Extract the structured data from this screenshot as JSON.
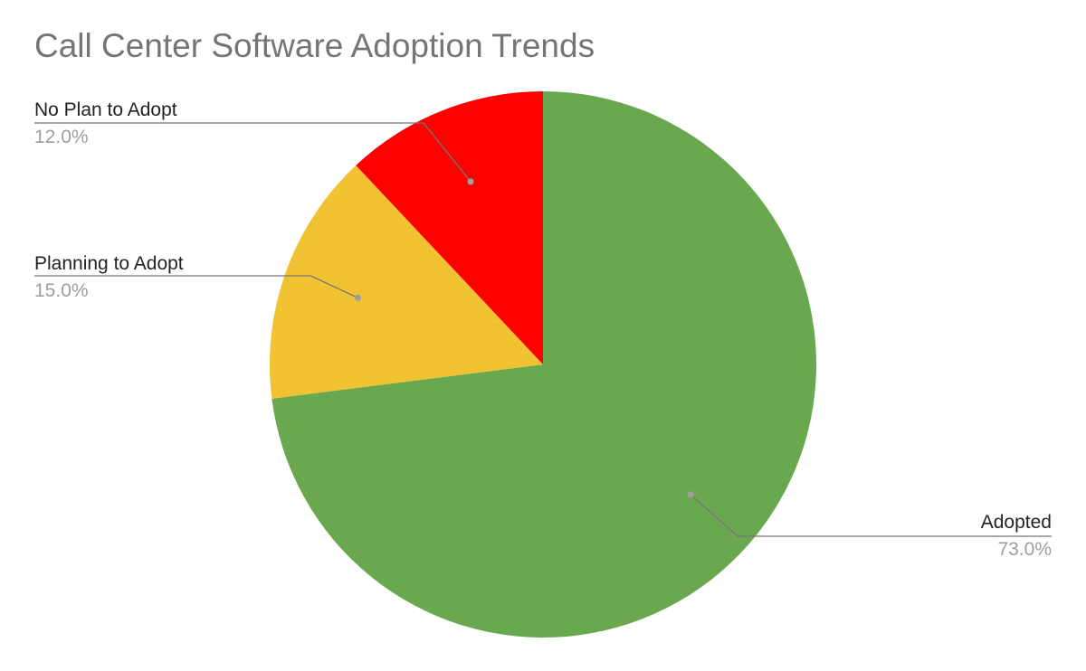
{
  "chart_data": {
    "type": "pie",
    "title": "Call Center Software Adoption Trends",
    "categories": [
      "Adopted",
      "Planning to Adopt",
      "No Plan to Adopt"
    ],
    "values": [
      73.0,
      15.0,
      12.0
    ],
    "value_labels": [
      "73.0%",
      "15.0%",
      "12.0%"
    ],
    "colors": [
      "#6aa84f",
      "#f1c232",
      "#ff0000"
    ],
    "start_angle_deg": 0,
    "direction": "clockwise",
    "legend": "none",
    "label_placement": "outside-with-leader-lines"
  }
}
